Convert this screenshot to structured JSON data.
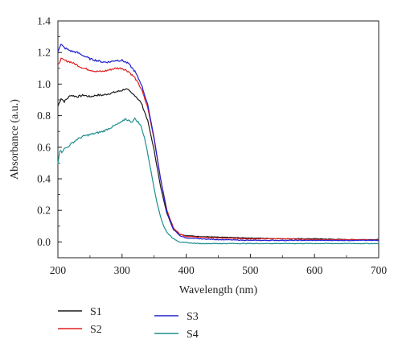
{
  "chart_data": {
    "type": "line",
    "title": "",
    "xlabel": "Wavelength (nm)",
    "ylabel": "Absorbance (a.u.)",
    "xlim": [
      200,
      700
    ],
    "ylim": [
      -0.1,
      1.4
    ],
    "xticks": [
      200,
      300,
      400,
      500,
      600,
      700
    ],
    "yticks": [
      0.0,
      0.2,
      0.4,
      0.6,
      0.8,
      1.0,
      1.2,
      1.4
    ],
    "grid": false,
    "legend_position": "bottom, below plot, two columns",
    "series": [
      {
        "name": "S1",
        "color": "#1a1a1a",
        "x": [
          200,
          205,
          210,
          220,
          230,
          240,
          250,
          260,
          270,
          280,
          290,
          300,
          305,
          310,
          315,
          320,
          330,
          340,
          350,
          360,
          370,
          380,
          390,
          400,
          420,
          450,
          500,
          550,
          600,
          650,
          700
        ],
        "y": [
          0.86,
          0.91,
          0.89,
          0.93,
          0.92,
          0.93,
          0.92,
          0.93,
          0.93,
          0.94,
          0.95,
          0.96,
          0.97,
          0.96,
          0.94,
          0.93,
          0.88,
          0.77,
          0.58,
          0.35,
          0.18,
          0.08,
          0.05,
          0.04,
          0.035,
          0.03,
          0.025,
          0.02,
          0.02,
          0.015,
          0.015
        ]
      },
      {
        "name": "S2",
        "color": "#e02020",
        "x": [
          200,
          205,
          210,
          220,
          230,
          240,
          250,
          260,
          270,
          280,
          290,
          300,
          310,
          320,
          330,
          340,
          350,
          360,
          370,
          380,
          390,
          400,
          420,
          450,
          500,
          550,
          600,
          650,
          700
        ],
        "y": [
          1.12,
          1.16,
          1.15,
          1.14,
          1.12,
          1.1,
          1.09,
          1.08,
          1.08,
          1.09,
          1.1,
          1.1,
          1.08,
          1.04,
          0.97,
          0.85,
          0.65,
          0.4,
          0.2,
          0.09,
          0.05,
          0.035,
          0.03,
          0.025,
          0.02,
          0.02,
          0.015,
          0.015,
          0.012
        ]
      },
      {
        "name": "S3",
        "color": "#2020d0",
        "x": [
          200,
          205,
          210,
          220,
          230,
          240,
          250,
          260,
          270,
          280,
          290,
          300,
          310,
          320,
          330,
          340,
          350,
          360,
          370,
          380,
          390,
          400,
          420,
          450,
          500,
          550,
          600,
          650,
          700
        ],
        "y": [
          1.21,
          1.25,
          1.23,
          1.21,
          1.2,
          1.18,
          1.16,
          1.15,
          1.14,
          1.14,
          1.15,
          1.15,
          1.13,
          1.08,
          1.0,
          0.87,
          0.66,
          0.4,
          0.19,
          0.08,
          0.04,
          0.025,
          0.02,
          0.015,
          0.01,
          0.01,
          0.01,
          0.01,
          0.01
        ]
      },
      {
        "name": "S4",
        "color": "#1f8f8f",
        "x": [
          200,
          203,
          206,
          210,
          215,
          220,
          230,
          240,
          250,
          260,
          270,
          280,
          290,
          300,
          305,
          310,
          315,
          320,
          325,
          330,
          335,
          340,
          345,
          350,
          355,
          360,
          365,
          370,
          380,
          390,
          400,
          420,
          450,
          500,
          550,
          600,
          650,
          700
        ],
        "y": [
          0.5,
          0.58,
          0.57,
          0.59,
          0.6,
          0.62,
          0.65,
          0.67,
          0.68,
          0.69,
          0.7,
          0.72,
          0.74,
          0.76,
          0.78,
          0.77,
          0.76,
          0.78,
          0.76,
          0.73,
          0.66,
          0.56,
          0.45,
          0.34,
          0.24,
          0.16,
          0.1,
          0.06,
          0.02,
          0.0,
          -0.005,
          -0.01,
          -0.01,
          -0.01,
          -0.01,
          -0.01,
          -0.01,
          -0.01
        ]
      }
    ]
  }
}
